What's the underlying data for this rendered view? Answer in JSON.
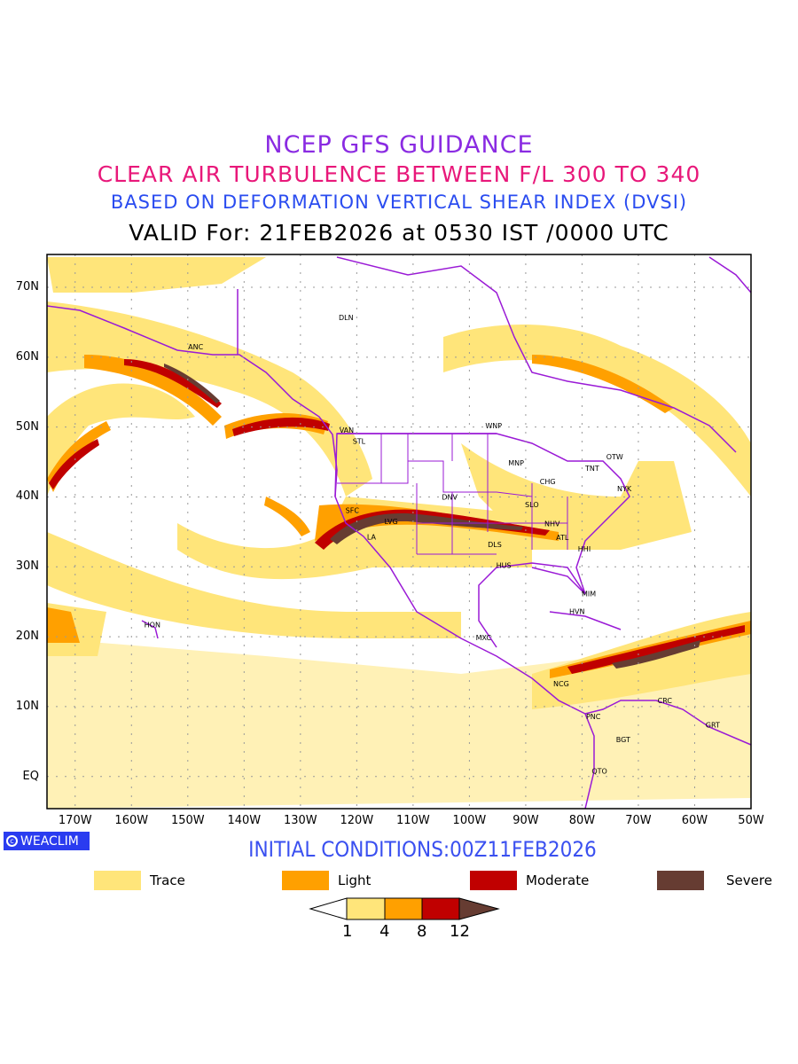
{
  "titles": {
    "line1": "NCEP GFS GUIDANCE",
    "line2": "CLEAR AIR TURBULENCE BETWEEN F/L 300 TO 340",
    "line3": "BASED ON DEFORMATION VERTICAL SHEAR INDEX (DVSI)",
    "line4": "VALID For: 21FEB2026 at 0530 IST /0000 UTC"
  },
  "axes": {
    "lat_labels": [
      "70N",
      "60N",
      "50N",
      "40N",
      "30N",
      "20N",
      "10N",
      "EQ"
    ],
    "lat_values": [
      70,
      60,
      50,
      40,
      30,
      20,
      10,
      0
    ],
    "lon_labels": [
      "170W",
      "160W",
      "150W",
      "140W",
      "130W",
      "120W",
      "110W",
      "100W",
      "90W",
      "80W",
      "70W",
      "60W",
      "50W"
    ],
    "lon_values": [
      -170,
      -160,
      -150,
      -140,
      -130,
      -120,
      -110,
      -100,
      -90,
      -80,
      -70,
      -60,
      -50
    ],
    "lon_range": [
      -175,
      -50
    ],
    "lat_range": [
      -4.6,
      74.7
    ]
  },
  "cities": [
    {
      "name": "ANC",
      "lon": -148.6,
      "lat": 61.5
    },
    {
      "name": "DLN",
      "lon": -121.9,
      "lat": 65.7
    },
    {
      "name": "VAN",
      "lon": -121.8,
      "lat": 49.6
    },
    {
      "name": "STL",
      "lon": -119.6,
      "lat": 48.0
    },
    {
      "name": "WNP",
      "lon": -95.7,
      "lat": 50.2
    },
    {
      "name": "MNP",
      "lon": -91.7,
      "lat": 44.9
    },
    {
      "name": "OTW",
      "lon": -74.2,
      "lat": 45.8
    },
    {
      "name": "TNT",
      "lon": -78.2,
      "lat": 44.1
    },
    {
      "name": "CHG",
      "lon": -86.1,
      "lat": 42.2
    },
    {
      "name": "NYK",
      "lon": -72.5,
      "lat": 41.2
    },
    {
      "name": "DNV",
      "lon": -103.5,
      "lat": 40.0
    },
    {
      "name": "SFC",
      "lon": -120.8,
      "lat": 38.1
    },
    {
      "name": "LVG",
      "lon": -113.9,
      "lat": 36.5
    },
    {
      "name": "LA",
      "lon": -117.4,
      "lat": 34.3
    },
    {
      "name": "SLO",
      "lon": -88.9,
      "lat": 38.9
    },
    {
      "name": "NHV",
      "lon": -85.3,
      "lat": 36.2
    },
    {
      "name": "ATL",
      "lon": -83.5,
      "lat": 34.2
    },
    {
      "name": "HHI",
      "lon": -79.6,
      "lat": 32.6
    },
    {
      "name": "DLS",
      "lon": -95.5,
      "lat": 33.2
    },
    {
      "name": "HUS",
      "lon": -93.9,
      "lat": 30.2
    },
    {
      "name": "MIM",
      "lon": -78.8,
      "lat": 26.2
    },
    {
      "name": "HVN",
      "lon": -80.9,
      "lat": 23.6
    },
    {
      "name": "MXC",
      "lon": -97.5,
      "lat": 19.9
    },
    {
      "name": "HON",
      "lon": -156.3,
      "lat": 21.7
    },
    {
      "name": "NCG",
      "lon": -83.7,
      "lat": 13.3
    },
    {
      "name": "CRC",
      "lon": -65.3,
      "lat": 10.9
    },
    {
      "name": "PNC",
      "lon": -78.0,
      "lat": 8.6
    },
    {
      "name": "GRT",
      "lon": -56.8,
      "lat": 7.4
    },
    {
      "name": "BGT",
      "lon": -72.7,
      "lat": 5.3
    },
    {
      "name": "QTO",
      "lon": -76.9,
      "lat": 0.8
    }
  ],
  "watermark": "WEACLIM",
  "initial_conditions": "INITIAL CONDITIONS:00Z11FEB2026",
  "legend": [
    {
      "label": "Trace",
      "color": "#ffe57a"
    },
    {
      "label": "Light",
      "color": "#ffa000"
    },
    {
      "label": "Moderate",
      "color": "#c00000"
    },
    {
      "label": "Severe",
      "color": "#663c32"
    }
  ],
  "colorbar": {
    "levels": [
      "1",
      "4",
      "8",
      "12"
    ],
    "colors": [
      "#ffffff",
      "#ffe57a",
      "#ffa000",
      "#c00000",
      "#663c32"
    ]
  },
  "colors": {
    "boundary": "#9a1ad6",
    "trace": "#ffe57a",
    "light": "#ffa000",
    "moderate": "#c00000",
    "severe": "#663c32"
  }
}
